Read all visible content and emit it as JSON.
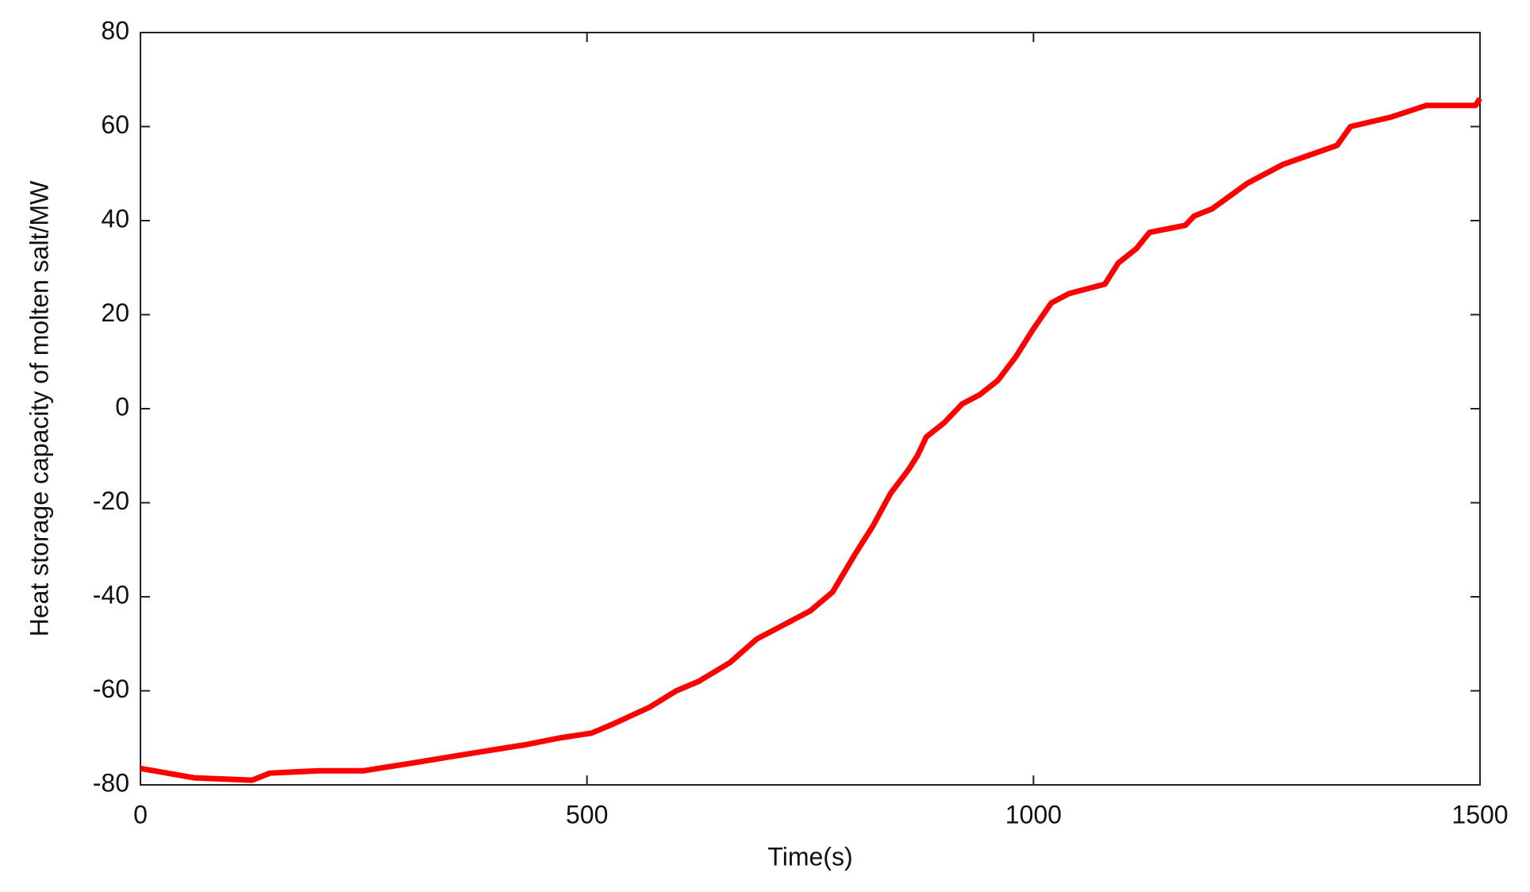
{
  "chart_data": {
    "type": "line",
    "x_label": "Time(s)",
    "y_label": "Heat storage capacity of molten salt/MW",
    "x": [
      0,
      60,
      125,
      145,
      200,
      250,
      300,
      380,
      430,
      470,
      505,
      530,
      570,
      600,
      625,
      660,
      690,
      720,
      750,
      775,
      800,
      820,
      840,
      860,
      870,
      880,
      900,
      920,
      940,
      960,
      980,
      1000,
      1020,
      1040,
      1080,
      1095,
      1115,
      1130,
      1170,
      1180,
      1200,
      1240,
      1280,
      1340,
      1355,
      1400,
      1440,
      1470,
      1495,
      1500
    ],
    "series": [
      {
        "color": "#ff0000",
        "values": [
          -76.5,
          -78.5,
          -79,
          -77.5,
          -77,
          -77,
          -75.5,
          -73,
          -71.5,
          -70,
          -69,
          -67,
          -63.5,
          -60,
          -58,
          -54,
          -49,
          -46,
          -43,
          -39,
          -31,
          -25,
          -18,
          -13,
          -10,
          -6,
          -3,
          1,
          3,
          6,
          11,
          17,
          22.5,
          24.5,
          26.5,
          31,
          34,
          37.5,
          39,
          41,
          42.5,
          48,
          52,
          56,
          60,
          62,
          64.5,
          64.5,
          64.5,
          66
        ]
      }
    ],
    "xlim": [
      0,
      1500
    ],
    "xticks": [
      0,
      500,
      1000,
      1500
    ],
    "ylim": [
      -80,
      80
    ],
    "yticks": [
      -80,
      -60,
      -40,
      -20,
      0,
      20,
      40,
      60,
      80
    ]
  }
}
